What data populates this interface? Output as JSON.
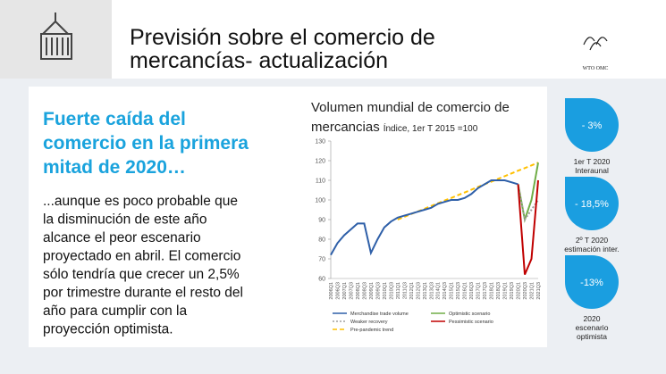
{
  "header": {
    "title_lines": [
      "Previsión sobre el comercio de",
      "mercancías- actualización"
    ],
    "logo": "WTO OMC"
  },
  "headline_lines": [
    "Fuerte caída del",
    "comercio en la primera",
    "mitad de 2020…"
  ],
  "body_lines": [
    "...aunque es poco probable que",
    "la disminución de este año",
    "alcance el peor escenario",
    "proyectado en abril. El comercio",
    "sólo tendría que crecer un 2,5%",
    "por trimestre durante el resto del",
    "año para cumplir con la",
    "proyección optimista."
  ],
  "stats": [
    {
      "value": "- 3%",
      "lines": [
        "1er T 2020",
        "Interaunal"
      ]
    },
    {
      "value": "- 18,5%",
      "lines": [
        "2º T 2020",
        "estimación inter."
      ]
    },
    {
      "value": "-13%",
      "lines": [
        "2020",
        "escenario",
        "optimista"
      ]
    }
  ],
  "chart_data": {
    "type": "line",
    "title_lines": [
      "Volumen mundial de comercio de",
      "mercancias"
    ],
    "subtitle": "Índice, 1er T 2015 =100",
    "categories": [
      "2006Q1",
      "2006Q3",
      "2007Q1",
      "2007Q3",
      "2008Q1",
      "2008Q3",
      "2009Q1",
      "2009Q3",
      "2010Q1",
      "2010Q3",
      "2011Q1",
      "2011Q3",
      "2012Q1",
      "2012Q3",
      "2013Q1",
      "2013Q3",
      "2014Q1",
      "2014Q3",
      "2015Q1",
      "2015Q3",
      "2016Q1",
      "2016Q3",
      "2017Q1",
      "2017Q3",
      "2018Q1",
      "2018Q3",
      "2019Q1",
      "2019Q3",
      "2020Q1",
      "2020Q3",
      "2021Q1",
      "2021Q3"
    ],
    "series": [
      {
        "name": "Merchandise trade volume",
        "color": "#2e5fa8",
        "dash": "none",
        "values": [
          72,
          78,
          82,
          85,
          88,
          88,
          73,
          80,
          86,
          89,
          91,
          92,
          93,
          94,
          95,
          96,
          98,
          99,
          100,
          100,
          101,
          103,
          106,
          108,
          110,
          110,
          110,
          109,
          108,
          null,
          null,
          null
        ]
      },
      {
        "name": "Optimistic scenario",
        "color": "#70ad47",
        "dash": "none",
        "values": [
          null,
          null,
          null,
          null,
          null,
          null,
          null,
          null,
          null,
          null,
          null,
          null,
          null,
          null,
          null,
          null,
          null,
          null,
          null,
          null,
          null,
          null,
          null,
          null,
          null,
          null,
          null,
          null,
          108,
          90,
          100,
          119
        ]
      },
      {
        "name": "Weaker recovery",
        "color": "#a0a0a0",
        "dash": "2,2",
        "values": [
          null,
          null,
          null,
          null,
          null,
          null,
          null,
          null,
          null,
          null,
          null,
          null,
          null,
          null,
          null,
          null,
          null,
          null,
          null,
          null,
          null,
          null,
          null,
          null,
          null,
          null,
          null,
          null,
          108,
          90,
          95,
          100
        ]
      },
      {
        "name": "Pessimistic scenario",
        "color": "#c00000",
        "dash": "none",
        "values": [
          null,
          null,
          null,
          null,
          null,
          null,
          null,
          null,
          null,
          null,
          null,
          null,
          null,
          null,
          null,
          null,
          null,
          null,
          null,
          null,
          null,
          null,
          null,
          null,
          null,
          null,
          null,
          null,
          108,
          62,
          70,
          110
        ]
      },
      {
        "name": "Pre-pandemic trend",
        "color": "#ffc000",
        "dash": "5,3",
        "values": [
          null,
          null,
          null,
          null,
          null,
          null,
          null,
          null,
          null,
          null,
          90,
          91.4,
          92.8,
          94.1,
          95.5,
          96.9,
          98.3,
          99.7,
          101,
          102.4,
          103.8,
          105.2,
          106.6,
          108,
          109.3,
          110.7,
          112.1,
          113.5,
          114.9,
          116.2,
          117.6,
          119
        ]
      }
    ],
    "ylim": [
      60,
      130
    ],
    "yticks": [
      60,
      70,
      80,
      90,
      100,
      110,
      120,
      130
    ],
    "grid": false
  }
}
